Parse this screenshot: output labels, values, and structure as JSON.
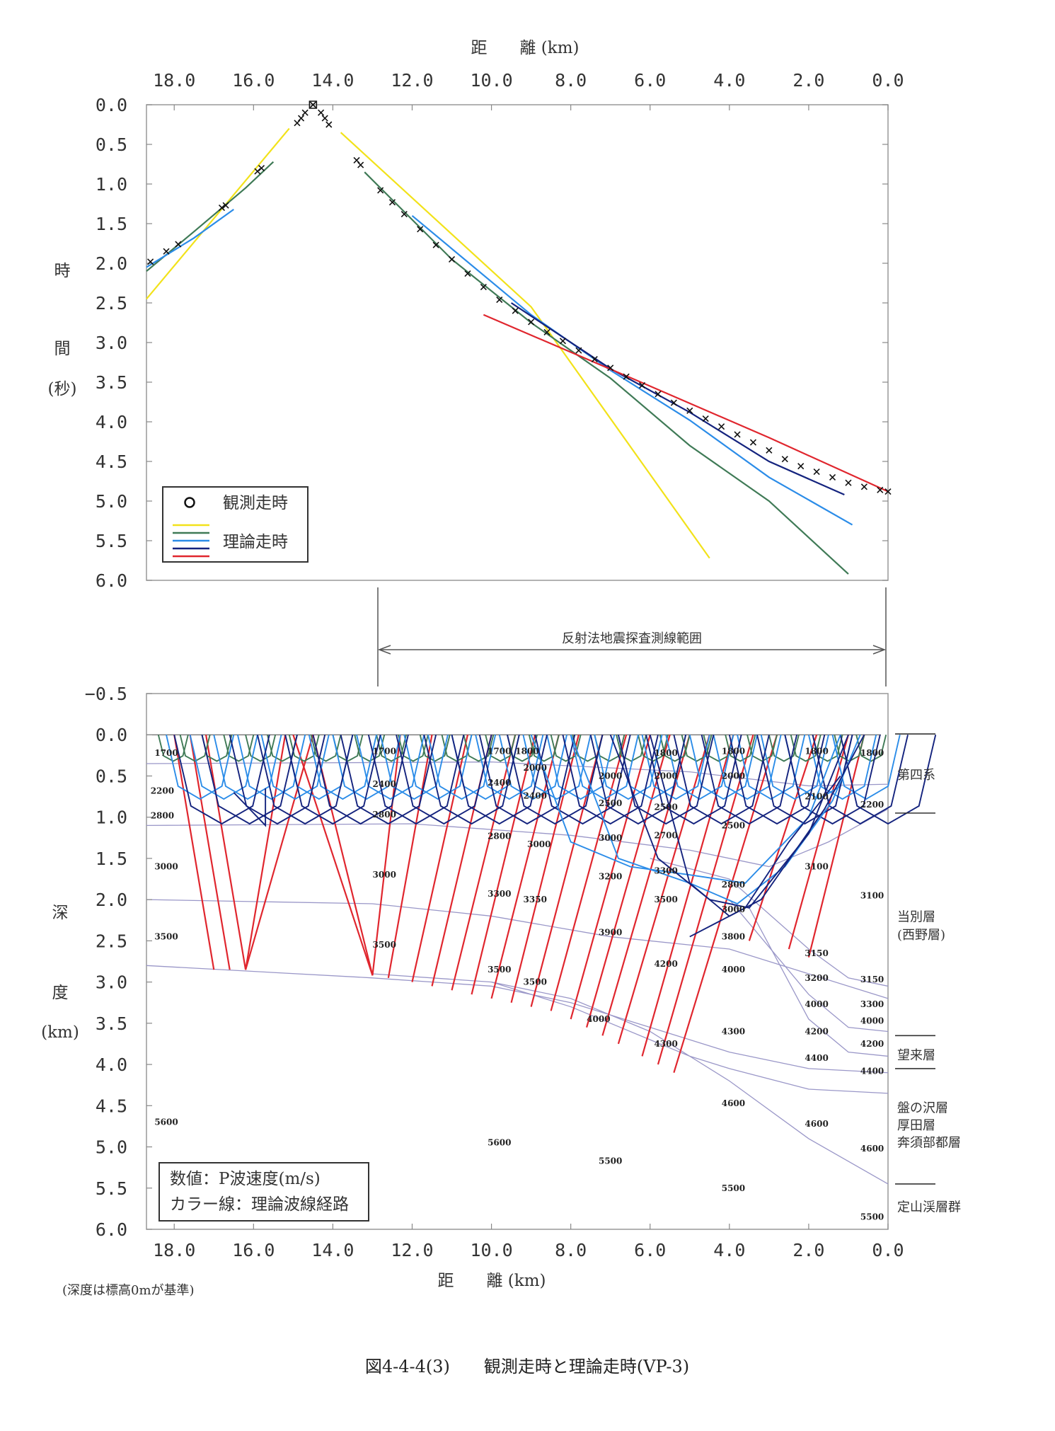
{
  "figure_caption": "図4-4-4(3)　　観測走時と理論走時(VP-3)",
  "depth_note": "(深度は標高0mが基準)",
  "survey_range_label": "反射法地震探査測線範囲",
  "colors": {
    "yellow": "#f2e21a",
    "green": "#3f7a56",
    "lightblue": "#2b8ce8",
    "darkblue": "#14237e",
    "red": "#e0262e",
    "layer_line": "#9a97c8",
    "observed": "#111111"
  },
  "chart_data": [
    {
      "type": "line",
      "name": "travel-time",
      "xlabel": "距　　離 (km)",
      "ylabel_chars": [
        "時",
        "間",
        "(秒)"
      ],
      "xlim": [
        18.7,
        0.0
      ],
      "ylim": [
        0.0,
        6.0
      ],
      "xticks": [
        "18.0",
        "16.0",
        "14.0",
        "12.0",
        "10.0",
        "8.0",
        "6.0",
        "4.0",
        "2.0",
        "0.0"
      ],
      "yticks": [
        "0.0",
        "0.5",
        "1.0",
        "1.5",
        "2.0",
        "2.5",
        "3.0",
        "3.5",
        "4.0",
        "4.5",
        "5.0",
        "5.5",
        "6.0"
      ],
      "legend": {
        "position": "bottom-left",
        "observed_label": "観測走時",
        "theory_label": "理論走時"
      },
      "observed": [
        [
          18.6,
          1.98
        ],
        [
          18.2,
          1.85
        ],
        [
          17.9,
          1.76
        ],
        [
          16.8,
          1.3
        ],
        [
          16.7,
          1.27
        ],
        [
          15.9,
          0.84
        ],
        [
          15.8,
          0.8
        ],
        [
          14.9,
          0.23
        ],
        [
          14.8,
          0.17
        ],
        [
          14.7,
          0.1
        ],
        [
          14.5,
          0.0
        ],
        [
          14.3,
          0.1
        ],
        [
          14.2,
          0.17
        ],
        [
          14.1,
          0.25
        ],
        [
          13.4,
          0.7
        ],
        [
          13.3,
          0.76
        ],
        [
          12.8,
          1.08
        ],
        [
          12.5,
          1.23
        ],
        [
          12.2,
          1.38
        ],
        [
          11.8,
          1.57
        ],
        [
          11.4,
          1.77
        ],
        [
          11.0,
          1.95
        ],
        [
          10.6,
          2.13
        ],
        [
          10.2,
          2.3
        ],
        [
          9.8,
          2.46
        ],
        [
          9.4,
          2.6
        ],
        [
          9.0,
          2.74
        ],
        [
          8.6,
          2.87
        ],
        [
          8.2,
          2.98
        ],
        [
          7.8,
          3.1
        ],
        [
          7.4,
          3.21
        ],
        [
          7.0,
          3.32
        ],
        [
          6.6,
          3.43
        ],
        [
          6.2,
          3.54
        ],
        [
          5.8,
          3.65
        ],
        [
          5.4,
          3.76
        ],
        [
          5.0,
          3.86
        ],
        [
          4.6,
          3.96
        ],
        [
          4.2,
          4.06
        ],
        [
          3.8,
          4.16
        ],
        [
          3.4,
          4.26
        ],
        [
          3.0,
          4.36
        ],
        [
          2.6,
          4.47
        ],
        [
          2.2,
          4.56
        ],
        [
          1.8,
          4.63
        ],
        [
          1.4,
          4.7
        ],
        [
          1.0,
          4.77
        ],
        [
          0.6,
          4.82
        ],
        [
          0.2,
          4.86
        ],
        [
          0.0,
          4.88
        ]
      ],
      "series": [
        {
          "color_key": "yellow",
          "points": [
            [
              18.7,
              2.45
            ],
            [
              15.1,
              0.3
            ]
          ]
        },
        {
          "color_key": "yellow",
          "points": [
            [
              13.8,
              0.35
            ],
            [
              9.0,
              2.55
            ],
            [
              4.5,
              5.72
            ]
          ]
        },
        {
          "color_key": "green",
          "points": [
            [
              18.7,
              2.1
            ],
            [
              17.5,
              1.6
            ],
            [
              16.2,
              1.05
            ],
            [
              15.5,
              0.72
            ]
          ]
        },
        {
          "color_key": "green",
          "points": [
            [
              13.2,
              0.85
            ],
            [
              11.0,
              1.95
            ],
            [
              9.0,
              2.75
            ],
            [
              7.0,
              3.45
            ],
            [
              5.0,
              4.3
            ],
            [
              3.0,
              5.0
            ],
            [
              1.0,
              5.92
            ]
          ]
        },
        {
          "color_key": "lightblue",
          "points": [
            [
              18.7,
              2.05
            ],
            [
              17.5,
              1.68
            ],
            [
              16.5,
              1.32
            ]
          ]
        },
        {
          "color_key": "lightblue",
          "points": [
            [
              12.0,
              1.4
            ],
            [
              9.0,
              2.65
            ],
            [
              7.0,
              3.35
            ],
            [
              5.0,
              3.98
            ],
            [
              3.0,
              4.7
            ],
            [
              0.9,
              5.3
            ]
          ]
        },
        {
          "color_key": "darkblue",
          "points": [
            [
              9.5,
              2.5
            ],
            [
              7.0,
              3.33
            ],
            [
              5.0,
              3.88
            ],
            [
              3.0,
              4.5
            ],
            [
              1.1,
              4.92
            ]
          ]
        },
        {
          "color_key": "red",
          "points": [
            [
              10.2,
              2.65
            ],
            [
              6.0,
              3.55
            ],
            [
              3.0,
              4.2
            ],
            [
              0.0,
              4.88
            ]
          ]
        }
      ]
    },
    {
      "type": "line",
      "name": "velocity-structure",
      "xlabel": "距　　離 (km)",
      "ylabel_chars": [
        "深",
        "度",
        "(km)"
      ],
      "xlim": [
        18.7,
        0.0
      ],
      "ylim": [
        -0.5,
        6.0
      ],
      "xticks": [
        "18.0",
        "16.0",
        "14.0",
        "12.0",
        "10.0",
        "8.0",
        "6.0",
        "4.0",
        "2.0",
        "0.0"
      ],
      "yticks": [
        "−0.5",
        "0.0",
        "0.5",
        "1.0",
        "1.5",
        "2.0",
        "2.5",
        "3.0",
        "3.5",
        "4.0",
        "4.5",
        "5.0",
        "5.5",
        "6.0"
      ],
      "legend_box": {
        "line1": "数値：P波速度(m/s)",
        "line2": "カラー線：理論波線経路"
      },
      "layer_boundaries": [
        [
          [
            18.7,
            0.35
          ],
          [
            10.0,
            0.33
          ],
          [
            5.0,
            0.45
          ],
          [
            2.0,
            0.62
          ],
          [
            0.0,
            0.6
          ]
        ],
        [
          [
            18.7,
            1.1
          ],
          [
            12.0,
            1.08
          ],
          [
            8.0,
            1.22
          ],
          [
            5.0,
            1.4
          ],
          [
            3.0,
            1.6
          ],
          [
            1.5,
            1.3
          ],
          [
            0.0,
            0.9
          ]
        ],
        [
          [
            18.7,
            2.0
          ],
          [
            13.0,
            2.05
          ],
          [
            10.0,
            2.2
          ],
          [
            7.0,
            2.45
          ],
          [
            4.0,
            2.6
          ],
          [
            2.0,
            2.9
          ],
          [
            0.0,
            3.2
          ]
        ],
        [
          [
            18.7,
            2.8
          ],
          [
            13.0,
            2.95
          ],
          [
            10.0,
            3.05
          ],
          [
            8.0,
            3.25
          ],
          [
            6.0,
            3.55
          ],
          [
            4.0,
            3.85
          ],
          [
            2.0,
            4.05
          ],
          [
            0.0,
            4.1
          ]
        ],
        [
          [
            10.0,
            3.0
          ],
          [
            8.0,
            3.3
          ],
          [
            6.0,
            3.7
          ],
          [
            5.0,
            3.9
          ],
          [
            4.0,
            4.05
          ],
          [
            2.0,
            4.3
          ],
          [
            0.0,
            4.35
          ]
        ],
        [
          [
            13.0,
            2.9
          ],
          [
            10.0,
            3.0
          ],
          [
            8.0,
            3.2
          ],
          [
            6.0,
            3.6
          ],
          [
            4.0,
            4.2
          ],
          [
            2.0,
            4.9
          ],
          [
            0.0,
            5.45
          ]
        ],
        [
          [
            6.0,
            1.5
          ],
          [
            4.0,
            1.75
          ],
          [
            2.0,
            2.6
          ],
          [
            1.0,
            2.95
          ],
          [
            0.0,
            3.05
          ]
        ],
        [
          [
            4.0,
            2.0
          ],
          [
            2.0,
            3.15
          ],
          [
            1.0,
            3.55
          ],
          [
            0.0,
            3.6
          ]
        ],
        [
          [
            3.5,
            2.1
          ],
          [
            2.0,
            3.45
          ],
          [
            1.0,
            3.85
          ],
          [
            0.0,
            3.9
          ]
        ]
      ],
      "velocity_labels": [
        {
          "text": "1700",
          "x": 18.2,
          "y": 0.22
        },
        {
          "text": "2200",
          "x": 18.3,
          "y": 0.68
        },
        {
          "text": "2800",
          "x": 18.3,
          "y": 0.98
        },
        {
          "text": "3000",
          "x": 18.2,
          "y": 1.6
        },
        {
          "text": "3500",
          "x": 18.2,
          "y": 2.45
        },
        {
          "text": "5600",
          "x": 18.2,
          "y": 4.7
        },
        {
          "text": "1700",
          "x": 12.7,
          "y": 0.2
        },
        {
          "text": "2400",
          "x": 12.7,
          "y": 0.6
        },
        {
          "text": "2800",
          "x": 12.7,
          "y": 0.97
        },
        {
          "text": "3000",
          "x": 12.7,
          "y": 1.7
        },
        {
          "text": "3500",
          "x": 12.7,
          "y": 2.55
        },
        {
          "text": "1700",
          "x": 9.8,
          "y": 0.2
        },
        {
          "text": "1800",
          "x": 9.1,
          "y": 0.2
        },
        {
          "text": "2000",
          "x": 8.9,
          "y": 0.4
        },
        {
          "text": "2400",
          "x": 9.8,
          "y": 0.58
        },
        {
          "text": "2400",
          "x": 8.9,
          "y": 0.74
        },
        {
          "text": "2800",
          "x": 9.8,
          "y": 1.23
        },
        {
          "text": "3000",
          "x": 8.8,
          "y": 1.33
        },
        {
          "text": "3300",
          "x": 9.8,
          "y": 1.93
        },
        {
          "text": "3350",
          "x": 8.9,
          "y": 2.0
        },
        {
          "text": "3500",
          "x": 9.8,
          "y": 2.85
        },
        {
          "text": "3500",
          "x": 8.9,
          "y": 3.0
        },
        {
          "text": "2000",
          "x": 7.0,
          "y": 0.5
        },
        {
          "text": "1800",
          "x": 5.6,
          "y": 0.22
        },
        {
          "text": "2000",
          "x": 5.6,
          "y": 0.5
        },
        {
          "text": "2500",
          "x": 7.0,
          "y": 0.83
        },
        {
          "text": "2500",
          "x": 5.6,
          "y": 0.88
        },
        {
          "text": "3000",
          "x": 7.0,
          "y": 1.25
        },
        {
          "text": "2700",
          "x": 5.6,
          "y": 1.22
        },
        {
          "text": "3200",
          "x": 7.0,
          "y": 1.72
        },
        {
          "text": "3300",
          "x": 5.6,
          "y": 1.65
        },
        {
          "text": "3500",
          "x": 5.6,
          "y": 2.0
        },
        {
          "text": "3900",
          "x": 7.0,
          "y": 2.4
        },
        {
          "text": "4200",
          "x": 5.6,
          "y": 2.78
        },
        {
          "text": "4000",
          "x": 7.3,
          "y": 3.45
        },
        {
          "text": "4300",
          "x": 5.6,
          "y": 3.75
        },
        {
          "text": "5600",
          "x": 9.8,
          "y": 4.95
        },
        {
          "text": "5500",
          "x": 7.0,
          "y": 5.17
        },
        {
          "text": "1800",
          "x": 3.9,
          "y": 0.2
        },
        {
          "text": "2000",
          "x": 3.9,
          "y": 0.5
        },
        {
          "text": "2500",
          "x": 3.9,
          "y": 1.1
        },
        {
          "text": "2800",
          "x": 3.9,
          "y": 1.82
        },
        {
          "text": "3000",
          "x": 3.9,
          "y": 2.12
        },
        {
          "text": "3800",
          "x": 3.9,
          "y": 2.45
        },
        {
          "text": "4000",
          "x": 3.9,
          "y": 2.85
        },
        {
          "text": "4300",
          "x": 3.9,
          "y": 3.6
        },
        {
          "text": "4600",
          "x": 3.9,
          "y": 4.47
        },
        {
          "text": "5500",
          "x": 3.9,
          "y": 5.5
        },
        {
          "text": "1800",
          "x": 1.8,
          "y": 0.2
        },
        {
          "text": "2100",
          "x": 1.8,
          "y": 0.75
        },
        {
          "text": "3100",
          "x": 1.8,
          "y": 1.6
        },
        {
          "text": "3150",
          "x": 1.8,
          "y": 2.65
        },
        {
          "text": "3200",
          "x": 1.8,
          "y": 2.95
        },
        {
          "text": "4000",
          "x": 1.8,
          "y": 3.27
        },
        {
          "text": "4200",
          "x": 1.8,
          "y": 3.6
        },
        {
          "text": "4400",
          "x": 1.8,
          "y": 3.92
        },
        {
          "text": "4600",
          "x": 1.8,
          "y": 4.72
        },
        {
          "text": "1800",
          "x": 0.4,
          "y": 0.22
        },
        {
          "text": "2200",
          "x": 0.4,
          "y": 0.85
        },
        {
          "text": "3100",
          "x": 0.4,
          "y": 1.95
        },
        {
          "text": "3150",
          "x": 0.4,
          "y": 2.97
        },
        {
          "text": "3300",
          "x": 0.4,
          "y": 3.27
        },
        {
          "text": "4000",
          "x": 0.4,
          "y": 3.47
        },
        {
          "text": "4200",
          "x": 0.4,
          "y": 3.75
        },
        {
          "text": "4400",
          "x": 0.4,
          "y": 4.08
        },
        {
          "text": "4600",
          "x": 0.4,
          "y": 5.02
        },
        {
          "text": "5500",
          "x": 0.4,
          "y": 5.85
        }
      ],
      "formations": [
        {
          "name": "第四系",
          "y": 0.48
        },
        {
          "name": "当別層",
          "y": 2.2
        },
        {
          "name": "(西野層)",
          "y": 2.42
        },
        {
          "name": "望来層",
          "y": 3.88
        },
        {
          "name": "盤の沢層",
          "y": 4.52
        },
        {
          "name": "厚田層",
          "y": 4.73
        },
        {
          "name": "奔須部都層",
          "y": 4.94
        },
        {
          "name": "定山渓層群",
          "y": 5.72
        }
      ],
      "formation_separators": [
        -0.01,
        0.95,
        3.65,
        4.05,
        5.45
      ]
    }
  ]
}
